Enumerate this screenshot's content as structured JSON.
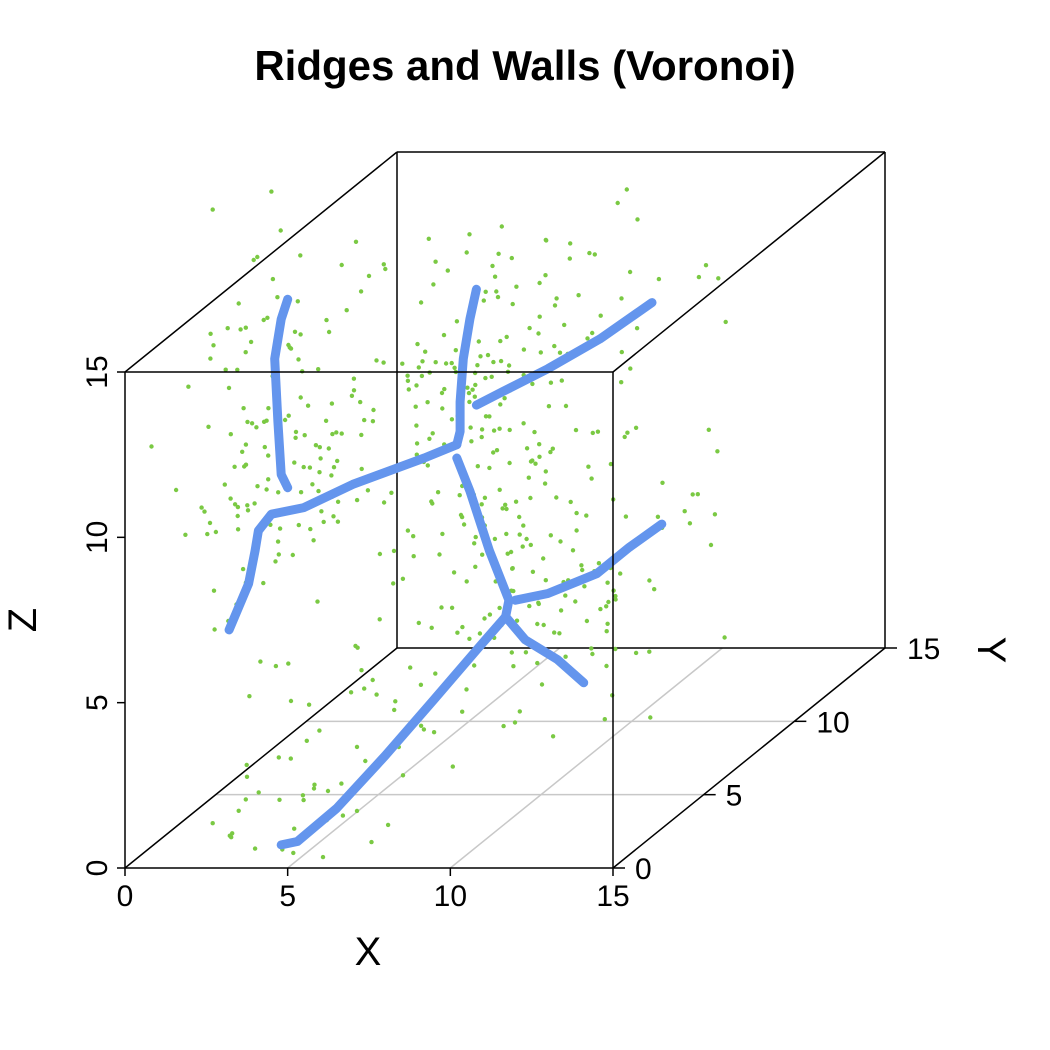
{
  "chart_data": {
    "type": "scatter",
    "title": "Ridges and Walls (Voronoi)",
    "xlabel": "X",
    "ylabel": "Y",
    "zlabel": "Z",
    "xlim": [
      0,
      15
    ],
    "ylim": [
      0,
      15
    ],
    "zlim": [
      0,
      15
    ],
    "x_ticks": [
      "0",
      "5",
      "10",
      "15"
    ],
    "y_ticks": [
      "0",
      "5",
      "10",
      "15"
    ],
    "z_ticks": [
      "0",
      "5",
      "10",
      "15"
    ],
    "grid": "floor",
    "colors": {
      "ridges": "#6495ed",
      "points": "#7ac943",
      "box": "#000000",
      "grid": "#c8c8c8"
    },
    "ridges": [
      {
        "points": [
          [
            4.8,
            0,
            0.7
          ],
          [
            5.3,
            0,
            0.8
          ],
          [
            6.5,
            0,
            1.8
          ],
          [
            8.0,
            0,
            3.4
          ],
          [
            9.5,
            0,
            5.1
          ],
          [
            10.9,
            0,
            6.7
          ],
          [
            11.7,
            0,
            7.6
          ]
        ]
      },
      {
        "points": [
          [
            11.7,
            0,
            7.6
          ],
          [
            12.3,
            0,
            6.9
          ],
          [
            13.3,
            0,
            6.3
          ],
          [
            14.1,
            0,
            5.6
          ]
        ]
      },
      {
        "points": [
          [
            11.7,
            0,
            7.6
          ],
          [
            11.8,
            0,
            8.1
          ],
          [
            11.2,
            0,
            9.6
          ],
          [
            10.6,
            0,
            11.4
          ],
          [
            10.2,
            0,
            12.4
          ]
        ]
      },
      {
        "points": [
          [
            12.0,
            0,
            8.1
          ],
          [
            13.0,
            0,
            8.3
          ],
          [
            14.5,
            0,
            8.9
          ],
          [
            15.5,
            0,
            9.7
          ],
          [
            16.5,
            0,
            10.4
          ]
        ]
      },
      {
        "points": [
          [
            10.2,
            0,
            12.8
          ],
          [
            10.3,
            0,
            13.2
          ],
          [
            10.3,
            0,
            14.1
          ],
          [
            10.4,
            0,
            15.4
          ],
          [
            10.6,
            0,
            16.6
          ],
          [
            10.8,
            0,
            17.5
          ]
        ]
      },
      {
        "points": [
          [
            10.2,
            0,
            12.8
          ],
          [
            9.2,
            0,
            12.4
          ],
          [
            7.0,
            0,
            11.6
          ],
          [
            5.5,
            0,
            10.9
          ],
          [
            4.5,
            0,
            10.7
          ],
          [
            4.1,
            0,
            10.2
          ],
          [
            4.0,
            0,
            9.6
          ],
          [
            3.8,
            0,
            8.6
          ],
          [
            3.2,
            0,
            7.2
          ]
        ]
      },
      {
        "points": [
          [
            5.0,
            0,
            11.5
          ],
          [
            4.8,
            0,
            11.9
          ],
          [
            4.7,
            0,
            13.5
          ],
          [
            4.6,
            0,
            15.4
          ],
          [
            4.8,
            0,
            16.6
          ],
          [
            5.0,
            0,
            17.2
          ]
        ]
      },
      {
        "points": [
          [
            10.8,
            0,
            14.0
          ],
          [
            11.6,
            0,
            14.4
          ],
          [
            13.0,
            0,
            15.1
          ],
          [
            14.6,
            0,
            16.0
          ],
          [
            16.2,
            0,
            17.1
          ]
        ]
      }
    ],
    "point_seed": 17,
    "point_count": 520
  }
}
